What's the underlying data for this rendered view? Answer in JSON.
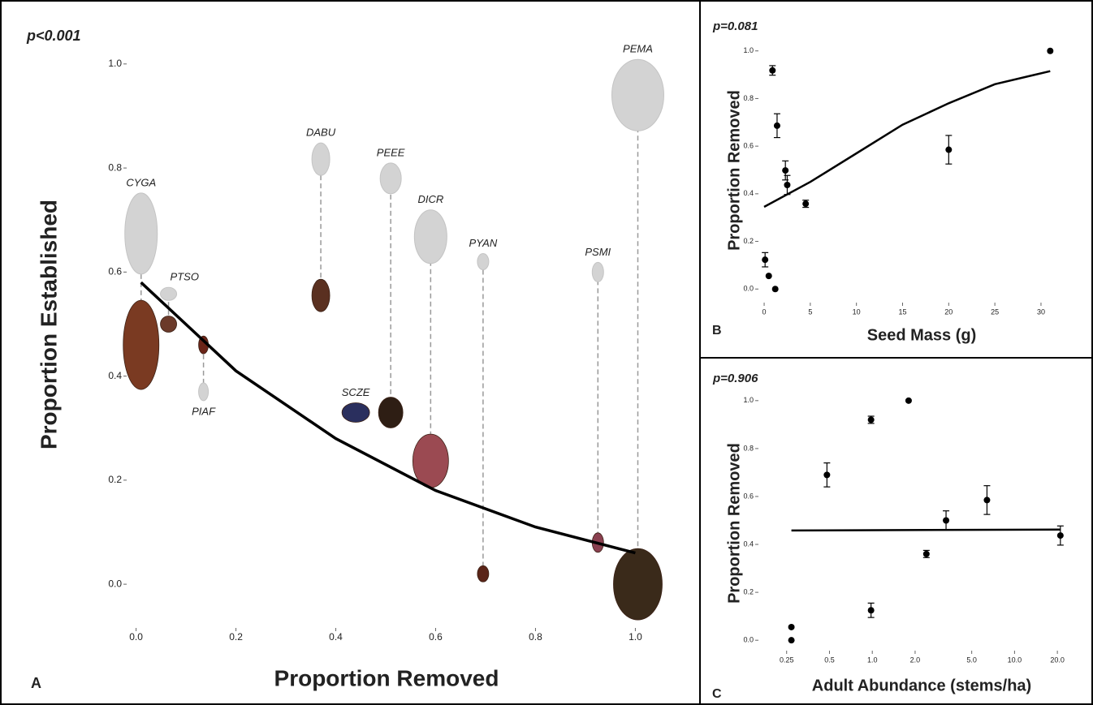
{
  "chart_data": [
    {
      "type": "scatter",
      "panel_label": "A",
      "annotation": "p<0.001",
      "x_label": "Proportion Removed",
      "y_label": "Proportion Established",
      "labels": [
        "CYGA",
        "PTSO",
        "PIAF",
        "DABU",
        "SCZE",
        "PEEE",
        "DICR",
        "PYAN",
        "PSMI",
        "PEMA"
      ],
      "x": [
        0.01,
        0.065,
        0.135,
        0.37,
        0.44,
        0.51,
        0.59,
        0.695,
        0.925,
        1.005
      ],
      "values": [
        0.46,
        0.5,
        0.46,
        0.555,
        0.33,
        0.33,
        0.237,
        0.02,
        0.08,
        0.0
      ],
      "values_before": [
        0.674,
        0.558,
        0.37,
        0.817,
        null,
        0.78,
        0.668,
        0.62,
        0.6,
        0.94
      ],
      "colors": [
        "#7a3a22",
        "#6b3a2a",
        "#6a2418",
        "#5a3020",
        "#2a2f5e",
        "#2e1e14",
        "#9b4a52",
        "#5a2418",
        "#8a4050",
        "#3a2a1a"
      ],
      "color_before": "#d3d3d3",
      "fit": {
        "x": [
          0.01,
          0.2,
          0.4,
          0.6,
          0.8,
          1.0
        ],
        "values": [
          0.58,
          0.41,
          0.28,
          0.18,
          0.11,
          0.06
        ]
      },
      "xlim": [
        -0.04,
        1.04
      ],
      "ylim": [
        -0.07,
        1.02
      ],
      "xticks": [
        {
          "value": 0,
          "label": "0.0"
        },
        0.2,
        0.4,
        0.6,
        0.8,
        {
          "value": 1,
          "label": "1.0"
        }
      ],
      "yticks": [
        {
          "value": 0,
          "label": "0.0"
        },
        0.2,
        0.4,
        0.6,
        0.8,
        {
          "value": 1,
          "label": "1.0"
        }
      ]
    },
    {
      "type": "scatter",
      "panel_label": "B",
      "annotation": "p=0.081",
      "x_label": "Seed Mass (g)",
      "y_label": "Proportion Removed",
      "x": [
        0.1,
        0.5,
        1.2,
        0.9,
        1.4,
        2.3,
        2.5,
        4.5,
        20,
        31
      ],
      "values": [
        0.123,
        0.055,
        0.0,
        0.918,
        0.686,
        0.498,
        0.437,
        0.358,
        0.585,
        1.0
      ],
      "errors": [
        0.03,
        null,
        null,
        0.02,
        0.05,
        0.04,
        0.04,
        0.015,
        0.06,
        null
      ],
      "fit": {
        "x": [
          0,
          5,
          10,
          15,
          20,
          25,
          31
        ],
        "values": [
          0.345,
          0.45,
          0.57,
          0.69,
          0.78,
          0.86,
          0.915
        ]
      },
      "xlim": [
        -1.5,
        31.5
      ],
      "ylim": [
        -0.04,
        1.04
      ],
      "xticks": [
        0,
        5,
        10,
        15,
        20,
        25,
        30
      ],
      "yticks": [
        {
          "value": 0,
          "label": "0.0"
        },
        0.2,
        0.4,
        0.6,
        0.8,
        {
          "value": 1,
          "label": "1.0"
        }
      ]
    },
    {
      "type": "scatter",
      "panel_label": "C",
      "annotation": "p=0.906",
      "x_label": "Adult Abundance (stems/ha)",
      "y_label": "Proportion Removed",
      "log_x": true,
      "x": [
        0.27,
        0.27,
        0.48,
        0.98,
        0.98,
        1.8,
        2.4,
        3.3,
        6.4,
        21
      ],
      "values": [
        0.055,
        0.0,
        0.69,
        0.92,
        0.125,
        1.0,
        0.36,
        0.5,
        0.585,
        0.437
      ],
      "errors": [
        null,
        null,
        0.05,
        0.015,
        0.03,
        null,
        0.015,
        0.04,
        0.06,
        0.04
      ],
      "fit": {
        "x": [
          0.27,
          21
        ],
        "values": [
          0.458,
          0.462
        ]
      },
      "xlim": [
        0.22,
        24
      ],
      "ylim": [
        -0.04,
        1.04
      ],
      "xticks": [
        0.25,
        0.5,
        {
          "value": 1,
          "label": "1.0"
        },
        {
          "value": 2,
          "label": "2.0"
        },
        {
          "value": 5,
          "label": "5.0"
        },
        {
          "value": 10,
          "label": "10.0"
        },
        {
          "value": 20,
          "label": "20.0"
        }
      ],
      "yticks": [
        {
          "value": 0,
          "label": "0.0"
        },
        0.2,
        0.4,
        0.6,
        0.8,
        {
          "value": 1,
          "label": "1.0"
        }
      ]
    }
  ]
}
